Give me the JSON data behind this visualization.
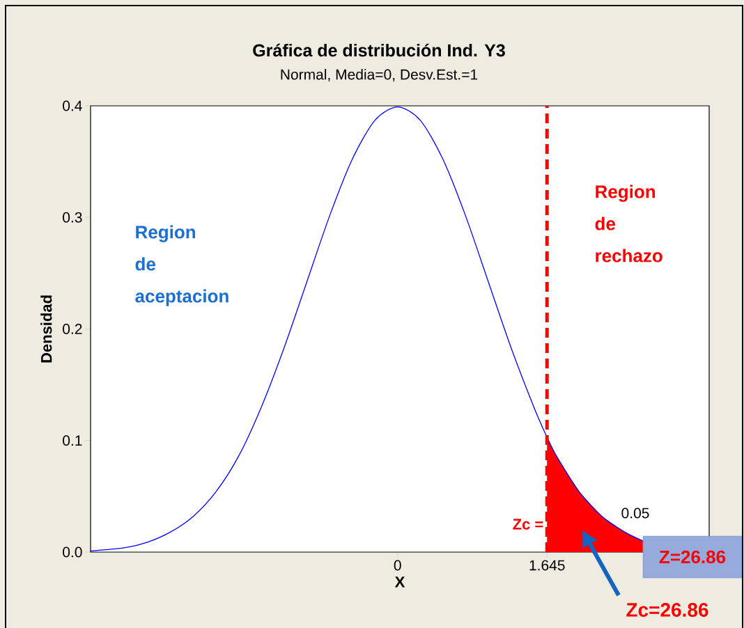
{
  "chart_data": {
    "type": "line",
    "title": "Gráfica de distribución Ind. Y3",
    "subtitle": "Normal, Media=0, Desv.Est.=1",
    "xlabel": "X",
    "ylabel": "Densidad",
    "xlim": [
      -3.38,
      3.43
    ],
    "ylim": [
      0,
      0.4
    ],
    "xticks": [
      0,
      1.645
    ],
    "yticks": [
      {
        "value": 0,
        "label": "0.0"
      },
      0.1,
      0.2,
      0.3,
      0.4
    ],
    "series": [
      {
        "color": "#0000ff",
        "x": [
          -3.38,
          -3,
          -2.75,
          -2.5,
          -2.25,
          -2,
          -1.75,
          -1.5,
          -1.25,
          -1,
          -0.75,
          -0.5,
          -0.25,
          0,
          0.25,
          0.5,
          0.75,
          1,
          1.25,
          1.5,
          1.645,
          1.75,
          2,
          2.25,
          2.5,
          2.7
        ],
        "values": [
          0.001,
          0.004,
          0.009,
          0.018,
          0.032,
          0.054,
          0.086,
          0.13,
          0.183,
          0.242,
          0.301,
          0.352,
          0.387,
          0.399,
          0.387,
          0.352,
          0.301,
          0.242,
          0.183,
          0.13,
          0.103,
          0.086,
          0.054,
          0.032,
          0.018,
          0.01
        ]
      },
      {
        "type": "area",
        "color": "#ff0000",
        "x": [
          1.645,
          1.75,
          2,
          2.25,
          2.5,
          2.7
        ],
        "values": [
          0.103,
          0.086,
          0.054,
          0.032,
          0.018,
          0.01
        ]
      }
    ],
    "ref_lines": [
      {
        "axis": "x",
        "value": 1.645,
        "color": "#ff0000",
        "line_style": "dashed"
      }
    ],
    "annotations": [
      "Region de aceptacion",
      "Region de rechazo",
      "0.05",
      "Zc =",
      "Z=26.86",
      "Zc=26.86"
    ]
  }
}
